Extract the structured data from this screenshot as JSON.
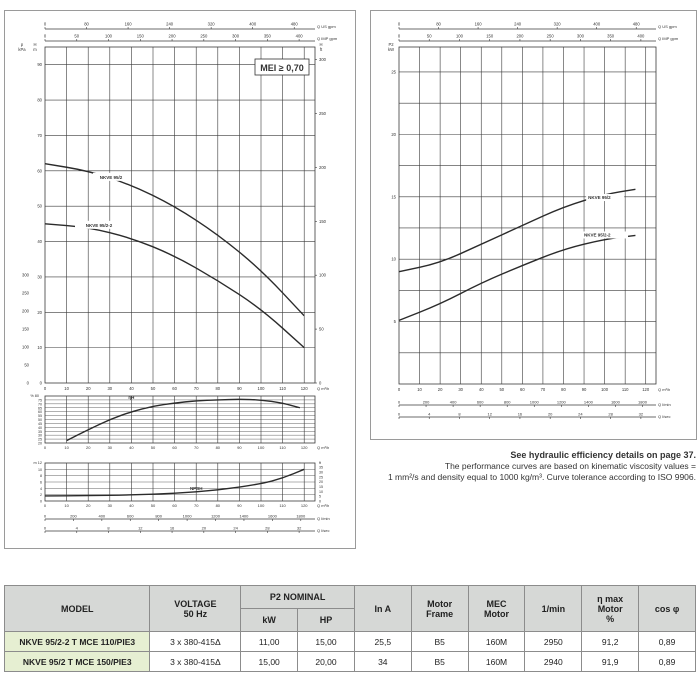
{
  "colors": {
    "curve": "#2b2b2b",
    "grid": "#3a3a3a",
    "header_bg": "#d6d8d6",
    "model_bg": "#e6efd2"
  },
  "left_chart": {
    "top_axis_1": {
      "unit": "Q US gpm",
      "ticks": [
        "0",
        "80",
        "160",
        "240",
        "320",
        "400",
        "480"
      ]
    },
    "top_axis_2": {
      "unit": "Q IMP gpm",
      "ticks": [
        "0",
        "50",
        "100",
        "150",
        "200",
        "250",
        "300",
        "350",
        "400"
      ]
    },
    "main": {
      "y_left_outer": {
        "label": "p",
        "unit": "kPa",
        "ticks": [
          "0",
          "50",
          "100",
          "150",
          "200",
          "250",
          "300"
        ]
      },
      "y_left_inner": {
        "label": "H",
        "unit": "m",
        "ticks": [
          "0",
          "10",
          "20",
          "30",
          "40",
          "50",
          "60",
          "70",
          "80",
          "90"
        ]
      },
      "y_right": {
        "label": "H",
        "unit": "ft",
        "ticks": [
          "0",
          "50",
          "100",
          "150",
          "200",
          "250",
          "300"
        ]
      },
      "x_unit": "Q m³/h",
      "x_ticks": [
        "0",
        "10",
        "20",
        "30",
        "40",
        "50",
        "60",
        "70",
        "80",
        "90",
        "100",
        "110",
        "120"
      ],
      "badge": "MEI ≥ 0,70"
    },
    "eff": {
      "y_label": "% 80",
      "y_ticks": [
        "20",
        "25",
        "30",
        "35",
        "40",
        "45",
        "50",
        "55",
        "60",
        "65",
        "70",
        "75"
      ],
      "curve_label": "ηH",
      "x_unit": "Q m³/h"
    },
    "npsh": {
      "y_label": "m 12",
      "y_left_ticks": [
        "0",
        "2",
        "4",
        "6",
        "8",
        "10"
      ],
      "y_right_label": "ft",
      "y_right_ticks": [
        "0",
        "5",
        "10",
        "15",
        "20",
        "25",
        "30",
        "35"
      ],
      "curve_label": "NPSH",
      "x_unit": "Q m³/h"
    },
    "bottom_axis_1": {
      "unit": "Q l/min",
      "ticks": [
        "0",
        "200",
        "400",
        "600",
        "800",
        "1000",
        "1200",
        "1400",
        "1600",
        "1800"
      ]
    },
    "bottom_axis_2": {
      "unit": "Q l/sec",
      "ticks": [
        "0",
        "4",
        "8",
        "12",
        "16",
        "20",
        "24",
        "28",
        "32"
      ]
    }
  },
  "right_chart": {
    "top_axis_1": {
      "unit": "Q US gpm",
      "ticks": [
        "0",
        "80",
        "160",
        "240",
        "320",
        "400",
        "480"
      ]
    },
    "top_axis_2": {
      "unit": "Q IMP gpm",
      "ticks": [
        "0",
        "50",
        "100",
        "150",
        "200",
        "250",
        "300",
        "350",
        "400"
      ]
    },
    "y_label": "P2",
    "y_unit": "kW",
    "y_ticks": [
      "5",
      "10",
      "15",
      "20",
      "25"
    ],
    "x_unit": "Q m³/h",
    "x_ticks": [
      "0",
      "10",
      "20",
      "30",
      "40",
      "50",
      "60",
      "70",
      "80",
      "90",
      "100",
      "110",
      "120"
    ],
    "bottom_axis_1": {
      "unit": "Q l/min",
      "ticks": [
        "0",
        "200",
        "400",
        "600",
        "800",
        "1000",
        "1200",
        "1400",
        "1600",
        "1800"
      ]
    },
    "bottom_axis_2": {
      "unit": "Q l/sec",
      "ticks": [
        "0",
        "4",
        "8",
        "12",
        "16",
        "20",
        "24",
        "28",
        "32"
      ]
    }
  },
  "chart_data": [
    {
      "type": "line",
      "xlabel": "Q m³/h",
      "ylabel": "H m",
      "xlim": [
        0,
        125
      ],
      "ylim": [
        0,
        95
      ],
      "series": [
        {
          "name": "NKVE 95/2",
          "x": [
            0,
            20,
            40,
            60,
            80,
            100,
            120
          ],
          "y": [
            62,
            60,
            56,
            50,
            42,
            32,
            19
          ]
        },
        {
          "name": "NKVE 95/2-2",
          "x": [
            0,
            20,
            40,
            60,
            80,
            100,
            120
          ],
          "y": [
            45,
            44,
            41,
            36,
            29,
            21,
            10
          ]
        }
      ]
    },
    {
      "type": "line",
      "xlabel": "Q m³/h",
      "ylabel": "ηH %",
      "xlim": [
        0,
        125
      ],
      "ylim": [
        20,
        80
      ],
      "series": [
        {
          "name": "ηH",
          "x": [
            10,
            20,
            30,
            40,
            50,
            60,
            70,
            80,
            90,
            100,
            110,
            118
          ],
          "y": [
            23,
            37,
            50,
            60,
            67,
            71,
            74,
            75,
            76,
            75,
            71,
            65
          ]
        }
      ]
    },
    {
      "type": "line",
      "xlabel": "Q m³/h",
      "ylabel": "NPSH m",
      "xlim": [
        0,
        125
      ],
      "ylim": [
        0,
        12
      ],
      "series": [
        {
          "name": "NPSH",
          "x": [
            0,
            20,
            40,
            60,
            80,
            100,
            110,
            120
          ],
          "y": [
            1.6,
            1.7,
            1.9,
            2.4,
            3.4,
            5.4,
            7.2,
            10
          ]
        }
      ]
    },
    {
      "type": "line",
      "xlabel": "Q m³/h",
      "ylabel": "P2 kW",
      "xlim": [
        0,
        125
      ],
      "ylim": [
        0,
        27
      ],
      "series": [
        {
          "name": "NKVE 95/2",
          "x": [
            0,
            20,
            40,
            60,
            80,
            100,
            115
          ],
          "y": [
            9,
            9.7,
            11.2,
            12.7,
            14.2,
            15.2,
            15.6
          ]
        },
        {
          "name": "NKVE 95/2-2",
          "x": [
            0,
            20,
            40,
            60,
            80,
            100,
            115
          ],
          "y": [
            5.1,
            6.4,
            8.1,
            9.5,
            10.8,
            11.6,
            11.9
          ]
        }
      ]
    }
  ],
  "notes": {
    "line1": "See hydraulic efficiency details on page 37.",
    "line2": "The performance curves are based on kinematic viscosity values =",
    "line3": "1 mm²/s and density equal to 1000 kg/m³. Curve tolerance according to ISO 9906."
  },
  "table": {
    "headers": {
      "model": "MODEL",
      "voltage": "VOLTAGE",
      "voltage2": "50 Hz",
      "p2": "P2 NOMINAL",
      "kw": "kW",
      "hp": "HP",
      "ina": "In A",
      "motor_frame": "Motor",
      "motor_frame2": "Frame",
      "mec": "MEC",
      "mec2": "Motor",
      "rpm": "1/min",
      "eta": "η max",
      "eta2": "Motor",
      "eta3": "%",
      "cos": "cos φ"
    },
    "rows": [
      {
        "model": "NKVE 95/2-2 T MCE 110/PIE3",
        "voltage": "3 x 380-415Δ",
        "kw": "11,00",
        "hp": "15,00",
        "ina": "25,5",
        "frame": "B5",
        "mec": "160M",
        "rpm": "2950",
        "eta": "91,2",
        "cos": "0,89"
      },
      {
        "model": "NKVE 95/2 T MCE 150/PIE3",
        "voltage": "3 x 380-415Δ",
        "kw": "15,00",
        "hp": "20,00",
        "ina": "34",
        "frame": "B5",
        "mec": "160M",
        "rpm": "2940",
        "eta": "91,9",
        "cos": "0,89"
      }
    ]
  }
}
